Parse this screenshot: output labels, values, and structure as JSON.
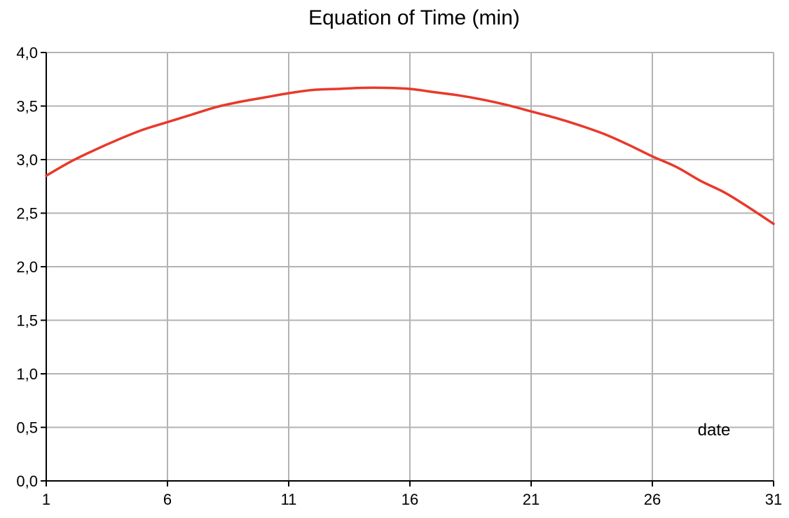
{
  "chart_data": {
    "type": "line",
    "title": "Equation of Time (min)",
    "xlabel": "",
    "ylabel": "",
    "annotation": "date",
    "xlim": [
      1,
      31
    ],
    "ylim": [
      0,
      4
    ],
    "x_ticks": [
      1,
      6,
      11,
      16,
      21,
      26,
      31
    ],
    "x_tick_labels": [
      "1",
      "6",
      "11",
      "16",
      "21",
      "26",
      "31"
    ],
    "y_ticks": [
      0,
      0.5,
      1,
      1.5,
      2,
      2.5,
      3,
      3.5,
      4
    ],
    "y_tick_labels": [
      "0,0",
      "0,5",
      "1,0",
      "1,5",
      "2,0",
      "2,5",
      "3,0",
      "3,5",
      "4,0"
    ],
    "grid": true,
    "legend": "none",
    "x": [
      1,
      2,
      3,
      4,
      5,
      6,
      7,
      8,
      9,
      10,
      11,
      12,
      13,
      14,
      15,
      16,
      17,
      18,
      19,
      20,
      21,
      22,
      23,
      24,
      25,
      26,
      27,
      28,
      29,
      30,
      31
    ],
    "series": [
      {
        "color": "#e8392b",
        "values": [
          2.85,
          2.98,
          3.09,
          3.19,
          3.28,
          3.35,
          3.42,
          3.49,
          3.54,
          3.58,
          3.62,
          3.65,
          3.66,
          3.67,
          3.67,
          3.66,
          3.63,
          3.6,
          3.56,
          3.51,
          3.45,
          3.39,
          3.32,
          3.24,
          3.14,
          3.03,
          2.93,
          2.8,
          2.69,
          2.55,
          2.4
        ]
      }
    ]
  }
}
